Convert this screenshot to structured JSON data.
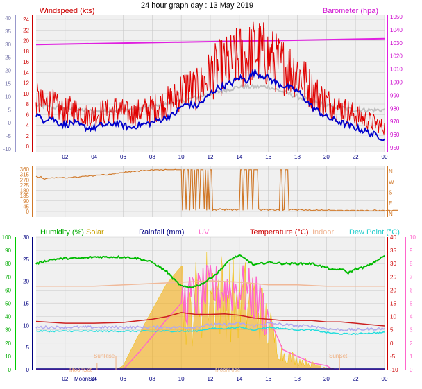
{
  "title": "24 hour graph day : 13 May 2019",
  "colors": {
    "wind": "#e00000",
    "gust": "#ff2020",
    "avg": "#0000cc",
    "baro": "#e020e0",
    "hum": "#00bb00",
    "rain": "#000080",
    "uv": "#ff66cc",
    "temp": "#cc2020",
    "indoor": "#f0b898",
    "dew": "#22dddd",
    "solar": "#f5a800",
    "dir": "#d07828",
    "axis_time": "#000080",
    "grid": "#c8c8c8",
    "plot_bg": "#f0f0f0"
  },
  "chart_data": [
    {
      "name": "wind-baro",
      "type": "line",
      "labels": {
        "left": "Windspeed (kts)",
        "right": "Barometer (hpa)"
      },
      "outer_left_ticks": [
        "40",
        "35",
        "30",
        "25",
        "20",
        "15",
        "10",
        "5",
        "0",
        "-5",
        "-10"
      ],
      "left_ticks": [
        "24",
        "22",
        "20",
        "18",
        "16",
        "14",
        "12",
        "10",
        "8",
        "6",
        "4",
        "2",
        "0"
      ],
      "right_ticks": [
        "1050",
        "1040",
        "1030",
        "1020",
        "1010",
        "1000",
        "990",
        "980",
        "970",
        "960",
        "950"
      ],
      "ylim_kts": [
        0,
        24
      ],
      "ylim_hpa": [
        950,
        1050
      ],
      "baro": {
        "start": 1028.5,
        "end": 1033.0
      },
      "wind_profile": [
        [
          0,
          6
        ],
        [
          0.5,
          5
        ],
        [
          1,
          5.5
        ],
        [
          1.5,
          4.5
        ],
        [
          2,
          4
        ],
        [
          2.5,
          4.5
        ],
        [
          3,
          4
        ],
        [
          3.5,
          3.5
        ],
        [
          4,
          3.5
        ],
        [
          4.5,
          4
        ],
        [
          5,
          4
        ],
        [
          5.5,
          4.5
        ],
        [
          6,
          4
        ],
        [
          6.5,
          3.5
        ],
        [
          7,
          4
        ],
        [
          7.5,
          4.2
        ],
        [
          8,
          4.5
        ],
        [
          8.5,
          5
        ],
        [
          9,
          5.5
        ],
        [
          9.5,
          6
        ],
        [
          10,
          7.5
        ],
        [
          10.5,
          8
        ],
        [
          11,
          7.5
        ],
        [
          11.5,
          8.5
        ],
        [
          12,
          10
        ],
        [
          12.5,
          11
        ],
        [
          13,
          11.5
        ],
        [
          13.5,
          12
        ],
        [
          14,
          13
        ],
        [
          14.5,
          12.5
        ],
        [
          15,
          14
        ],
        [
          15.5,
          13.5
        ],
        [
          16,
          13
        ],
        [
          16.5,
          12
        ],
        [
          17,
          11.5
        ],
        [
          17.5,
          11
        ],
        [
          18,
          10.5
        ],
        [
          18.5,
          9
        ],
        [
          19,
          7.5
        ],
        [
          19.5,
          6.5
        ],
        [
          20,
          5.5
        ],
        [
          20.5,
          5
        ],
        [
          21,
          4.5
        ],
        [
          21.5,
          4
        ],
        [
          22,
          3.5
        ],
        [
          22.5,
          3
        ],
        [
          23,
          2.5
        ],
        [
          23.5,
          2
        ],
        [
          24,
          1.5
        ]
      ],
      "indoor_profile": [
        [
          0,
          14
        ],
        [
          2,
          13
        ],
        [
          4,
          12
        ],
        [
          6,
          12.5
        ],
        [
          8,
          13.5
        ],
        [
          10,
          15.5
        ],
        [
          12,
          18
        ],
        [
          14,
          20.5
        ],
        [
          16,
          20.5
        ],
        [
          18,
          17
        ],
        [
          20,
          14
        ],
        [
          22,
          12.5
        ],
        [
          24,
          12.5
        ]
      ]
    },
    {
      "name": "direction",
      "type": "line",
      "left_ticks": [
        "360",
        "315",
        "270",
        "225",
        "180",
        "135",
        "90",
        "45",
        "0"
      ],
      "compass": [
        "N",
        "W",
        "S",
        "E",
        "N"
      ],
      "ylim": [
        0,
        360
      ],
      "sample_minutes": 5,
      "direction": [
        300,
        295,
        290,
        292,
        298,
        285,
        280,
        275,
        280,
        282,
        285,
        285,
        285,
        288,
        288,
        285,
        288,
        290,
        285,
        288,
        288,
        288,
        290,
        290,
        285,
        285,
        285,
        290,
        288,
        290,
        290,
        295,
        295,
        295,
        290,
        290,
        295,
        295,
        300,
        300,
        300,
        302,
        300,
        300,
        305,
        305,
        305,
        300,
        305,
        305,
        310,
        310,
        310,
        310,
        312,
        315,
        315,
        310,
        310,
        310,
        315,
        318,
        315,
        320,
        320,
        320,
        325,
        325,
        325,
        330,
        330,
        330,
        330,
        330,
        340,
        335,
        335,
        340,
        335,
        340,
        345,
        340,
        340,
        345,
        345,
        340,
        350,
        350,
        345,
        350,
        350,
        345,
        348,
        350,
        350,
        355,
        355,
        350,
        355,
        355,
        355,
        355,
        352,
        355,
        355,
        350,
        355,
        358,
        355,
        355,
        355,
        355,
        355,
        355,
        355,
        358,
        355,
        355,
        355,
        355,
        355,
        10,
        355,
        355,
        15,
        355,
        355,
        10,
        355,
        355,
        20,
        355,
        10,
        355,
        355,
        25,
        355,
        355,
        355,
        20,
        355,
        10,
        355,
        15,
        355,
        355,
        10,
        20,
        15,
        10,
        20,
        15,
        25,
        20,
        15,
        20,
        10,
        25,
        15,
        20,
        15,
        20,
        10,
        15,
        20,
        15,
        10,
        20,
        15,
        355,
        355,
        10,
        355,
        355,
        355,
        15,
        355,
        355,
        355,
        15,
        355,
        355,
        355,
        355,
        20,
        15,
        10,
        15,
        20,
        15,
        20,
        15,
        10,
        15,
        15,
        20,
        15,
        10,
        10,
        15,
        20,
        10,
        355,
        355,
        10,
        15,
        355,
        355,
        355,
        10,
        15,
        20,
        15,
        20,
        15,
        15,
        10,
        15,
        20,
        15,
        15,
        10,
        10,
        15,
        10,
        10,
        15,
        10,
        5,
        10,
        10,
        10,
        15,
        10,
        10,
        10,
        15,
        10,
        10,
        10,
        10,
        10,
        15,
        10,
        10,
        10,
        10,
        10,
        5,
        10,
        10,
        10,
        10,
        10,
        5,
        5,
        10,
        10,
        10,
        5,
        10,
        10,
        10,
        10,
        5,
        5,
        10,
        5,
        10,
        10,
        10,
        5,
        5,
        10,
        10,
        5,
        5,
        5,
        5,
        10,
        15,
        10,
        5,
        5,
        10,
        5,
        10,
        10,
        5,
        5,
        10,
        10,
        10,
        5,
        5,
        10,
        10,
        10,
        10,
        10
      ]
    },
    {
      "name": "weather",
      "type": "line",
      "legend": [
        "Humidity (%)",
        "Solar",
        "Rainfall (mm)",
        "UV",
        "Temperature (°C)",
        "Indoor",
        "Dew Point (°C)"
      ],
      "left_hum_ticks": [
        "100",
        "90",
        "80",
        "70",
        "60",
        "50",
        "40",
        "30",
        "20",
        "10",
        "0"
      ],
      "left_rain_ticks": [
        "30",
        "25",
        "20",
        "15",
        "10",
        "5",
        "0"
      ],
      "right_temp_ticks": [
        "40",
        "35",
        "30",
        "25",
        "20",
        "15",
        "10",
        "5",
        "0",
        "-5",
        "-10"
      ],
      "right_uv_ticks": [
        "10",
        "9",
        "8",
        "7",
        "6",
        "5",
        "4",
        "3",
        "2",
        "1",
        "0"
      ],
      "ylim_temp": [
        -10,
        40
      ],
      "ylim_hum": [
        0,
        100
      ],
      "ylim_uv": [
        0,
        10
      ],
      "humidity": [
        [
          0,
          80
        ],
        [
          1,
          83
        ],
        [
          2,
          84
        ],
        [
          3,
          84
        ],
        [
          4,
          85
        ],
        [
          5,
          85
        ],
        [
          6,
          85
        ],
        [
          7,
          84
        ],
        [
          8,
          81
        ],
        [
          9,
          74
        ],
        [
          9.5,
          68
        ],
        [
          10,
          63
        ],
        [
          10.5,
          62
        ],
        [
          11,
          63
        ],
        [
          11.5,
          65
        ],
        [
          12,
          69
        ],
        [
          12.5,
          73
        ],
        [
          13,
          79
        ],
        [
          13.5,
          84
        ],
        [
          14,
          86
        ],
        [
          14.5,
          83
        ],
        [
          15,
          79
        ],
        [
          15.5,
          80
        ],
        [
          16,
          81
        ],
        [
          17,
          80
        ],
        [
          18,
          80
        ],
        [
          19,
          80
        ],
        [
          20,
          77
        ],
        [
          20.5,
          75
        ],
        [
          21,
          76
        ],
        [
          21.5,
          73
        ],
        [
          22,
          76
        ],
        [
          22.5,
          77
        ],
        [
          23,
          79
        ],
        [
          24,
          86
        ]
      ],
      "temperature": [
        [
          0,
          8.2
        ],
        [
          2,
          7.5
        ],
        [
          4,
          7.5
        ],
        [
          6,
          7.8
        ],
        [
          8,
          9
        ],
        [
          9,
          10
        ],
        [
          10,
          11.5
        ],
        [
          11,
          10.8
        ],
        [
          12,
          10.8
        ],
        [
          13,
          11
        ],
        [
          14,
          10.5
        ],
        [
          15,
          9.5
        ],
        [
          16,
          9
        ],
        [
          17,
          8.5
        ],
        [
          18,
          8.5
        ],
        [
          19,
          8.5
        ],
        [
          20,
          8
        ],
        [
          21,
          8
        ],
        [
          22,
          7.5
        ],
        [
          23,
          7
        ],
        [
          24,
          6.5
        ]
      ],
      "dew_point": [
        [
          0,
          4.5
        ],
        [
          2,
          4.5
        ],
        [
          4,
          4.5
        ],
        [
          6,
          4.5
        ],
        [
          8,
          4.5
        ],
        [
          10,
          4.5
        ],
        [
          11,
          4.5
        ],
        [
          12,
          5.5
        ],
        [
          13,
          5.5
        ],
        [
          14,
          6
        ],
        [
          15,
          5
        ],
        [
          16,
          6
        ],
        [
          17,
          5.5
        ],
        [
          18,
          5
        ],
        [
          19,
          5
        ],
        [
          20,
          4
        ],
        [
          21,
          3.5
        ],
        [
          22,
          3.5
        ],
        [
          23,
          3.8
        ],
        [
          24,
          4
        ]
      ],
      "indoor": [
        [
          0,
          -1.5
        ],
        [
          4,
          -1.5
        ],
        [
          8,
          -0.5
        ],
        [
          12,
          0.5
        ],
        [
          14,
          0
        ],
        [
          16,
          -1
        ],
        [
          18,
          -1
        ],
        [
          20,
          -1.5
        ],
        [
          24,
          -1.5
        ]
      ],
      "solar_profile": [
        [
          0,
          0
        ],
        [
          5,
          0
        ],
        [
          5.5,
          0
        ],
        [
          6,
          0.3
        ],
        [
          7,
          2.5
        ],
        [
          8,
          4.5
        ],
        [
          9,
          6.5
        ],
        [
          10,
          7.8
        ],
        [
          10.5,
          5
        ],
        [
          11,
          6.5
        ],
        [
          12,
          7.5
        ],
        [
          13,
          7
        ],
        [
          14,
          6.5
        ],
        [
          15,
          6.5
        ],
        [
          16,
          4
        ],
        [
          17,
          1.5
        ],
        [
          18,
          0.9
        ],
        [
          19,
          0.5
        ],
        [
          20,
          0.2
        ],
        [
          21,
          0
        ],
        [
          24,
          0
        ]
      ],
      "uv_profile": [
        [
          0,
          0
        ],
        [
          6,
          0
        ],
        [
          7,
          1.2
        ],
        [
          8,
          2.5
        ],
        [
          9,
          3.8
        ],
        [
          10,
          5
        ],
        [
          11,
          5.5
        ],
        [
          12,
          6
        ],
        [
          13,
          6
        ],
        [
          14,
          6.2
        ],
        [
          15,
          5.5
        ],
        [
          16,
          4
        ],
        [
          17,
          1.5
        ],
        [
          18,
          1
        ],
        [
          19,
          0.5
        ],
        [
          20,
          0.3
        ],
        [
          20.5,
          0
        ],
        [
          24,
          0
        ]
      ],
      "annotations": [
        "SunRise",
        "SunSet",
        "MoonSet",
        "MoonSet",
        "MoonRise"
      ]
    }
  ],
  "time_ticks": [
    "02",
    "04",
    "06",
    "08",
    "10",
    "12",
    "14",
    "16",
    "18",
    "20",
    "22",
    "00"
  ]
}
